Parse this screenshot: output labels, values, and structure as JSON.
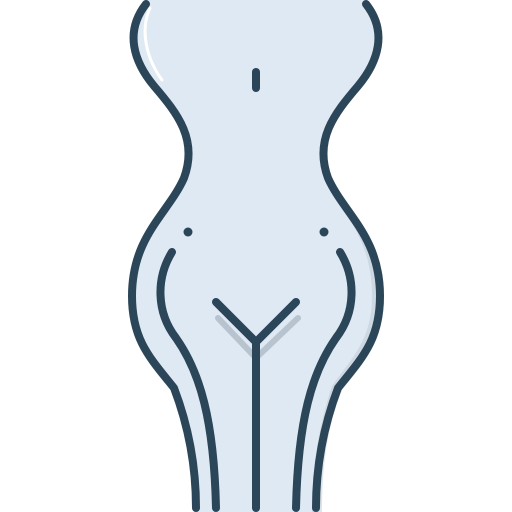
{
  "icon": {
    "name": "female-body-icon",
    "colors": {
      "fill": "#dfe9f3",
      "outline": "#2b4559",
      "shadow": "#b7c3cf",
      "highlight": "#ffffff",
      "background": "#ffffff"
    }
  }
}
